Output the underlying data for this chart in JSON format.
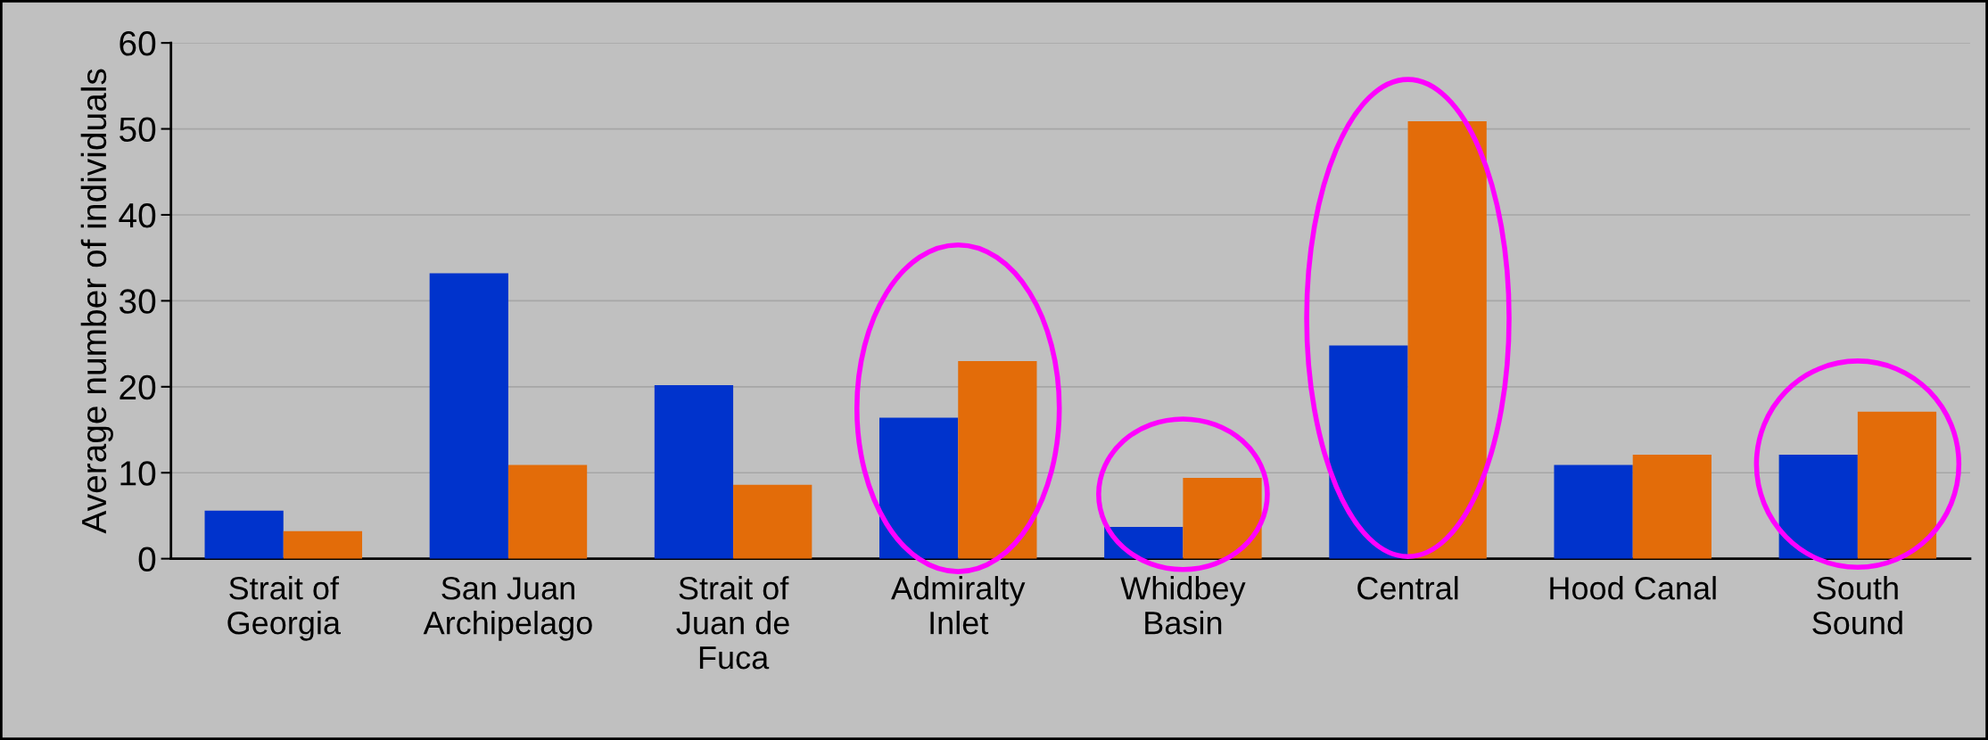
{
  "chart_data": {
    "type": "bar",
    "ylabel": "Average number of individuals",
    "categories": [
      "Strait of\nGeorgia",
      "San Juan\nArchipelago",
      "Strait of\nJuan de\nFuca",
      "Admiralty\nInlet",
      "Whidbey\nBasin",
      "Central",
      "Hood Canal",
      "South\nSound"
    ],
    "series": [
      {
        "color": "#0033cc",
        "values": [
          5.6,
          33.2,
          20.2,
          16.4,
          3.7,
          24.8,
          10.9,
          12.1
        ]
      },
      {
        "color": "#e36c09",
        "values": [
          3.2,
          10.9,
          8.6,
          23.0,
          9.4,
          50.9,
          12.1,
          17.1
        ]
      }
    ],
    "ylim": [
      0,
      60
    ],
    "yticks": [
      0,
      10,
      20,
      30,
      40,
      50,
      60
    ],
    "grid": "y"
  }
}
